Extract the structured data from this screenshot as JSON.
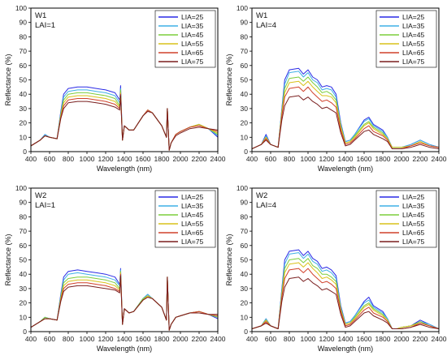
{
  "chart_data": [
    {
      "type": "line",
      "title": "W1",
      "subtitle": "LAI=1",
      "xlabel": "Wavelength (nm)",
      "ylabel": "Reflectance (%)",
      "xlim": [
        400,
        2400
      ],
      "ylim": [
        0,
        100
      ],
      "xticks": [
        400,
        600,
        800,
        1000,
        1200,
        1400,
        1600,
        1800,
        2000,
        2200,
        2400
      ],
      "yticks": [
        0,
        10,
        20,
        30,
        40,
        50,
        60,
        70,
        80,
        90,
        100
      ],
      "legend": "top-right",
      "grid": false,
      "x": [
        400,
        500,
        550,
        600,
        680,
        720,
        750,
        800,
        900,
        1000,
        1100,
        1200,
        1300,
        1350,
        1360,
        1380,
        1400,
        1450,
        1500,
        1600,
        1650,
        1700,
        1800,
        1850,
        1860,
        1880,
        1900,
        1950,
        2000,
        2100,
        2200,
        2300,
        2400
      ],
      "series": [
        {
          "name": "LIA=25",
          "color": "#2a2ae6",
          "values": [
            4,
            8,
            12,
            10,
            9,
            28,
            40,
            44,
            45,
            45,
            44,
            43,
            41,
            36,
            46,
            8,
            18,
            15,
            15,
            25,
            29,
            27,
            18,
            10,
            30,
            1,
            6,
            12,
            14,
            17,
            19,
            16,
            10
          ]
        },
        {
          "name": "LIA=35",
          "color": "#3fb0e6",
          "values": [
            4,
            8,
            12,
            10,
            9,
            27,
            38,
            42,
            43,
            43,
            42,
            41,
            39,
            34,
            44,
            8,
            18,
            15,
            15,
            25,
            29,
            27,
            18,
            10,
            30,
            1,
            6,
            12,
            14,
            17,
            19,
            16,
            11
          ]
        },
        {
          "name": "LIA=45",
          "color": "#7ccd3c",
          "values": [
            4,
            8,
            11,
            10,
            9,
            26,
            36,
            40,
            41,
            41,
            40,
            39,
            37,
            32,
            43,
            8,
            18,
            15,
            15,
            25,
            29,
            27,
            18,
            10,
            30,
            1,
            6,
            12,
            14,
            17,
            19,
            16,
            12
          ]
        },
        {
          "name": "LIA=55",
          "color": "#d9c21a",
          "values": [
            4,
            8,
            11,
            10,
            9,
            25,
            34,
            38,
            39,
            39,
            38,
            37,
            35,
            31,
            41,
            8,
            18,
            15,
            15,
            25,
            29,
            27,
            18,
            10,
            30,
            1,
            6,
            12,
            14,
            17,
            19,
            16,
            13
          ]
        },
        {
          "name": "LIA=65",
          "color": "#d0402a",
          "values": [
            4,
            8,
            11,
            10,
            9,
            24,
            32,
            36,
            37,
            37,
            36,
            35,
            33,
            30,
            40,
            8,
            18,
            15,
            15,
            25,
            29,
            27,
            18,
            10,
            30,
            1,
            6,
            12,
            14,
            17,
            18,
            16,
            14
          ]
        },
        {
          "name": "LIA=75",
          "color": "#7a1f1f",
          "values": [
            4,
            8,
            11,
            10,
            9,
            23,
            30,
            34,
            35,
            35,
            34,
            33,
            31,
            29,
            39,
            8,
            18,
            15,
            15,
            25,
            28,
            27,
            18,
            10,
            30,
            1,
            6,
            11,
            13,
            16,
            17,
            16,
            15
          ]
        }
      ]
    },
    {
      "type": "line",
      "title": "W1",
      "subtitle": "LAI=4",
      "xlabel": "Wavelength (nm)",
      "ylabel": "Reflectance (%)",
      "xlim": [
        400,
        2400
      ],
      "ylim": [
        0,
        100
      ],
      "xticks": [
        400,
        600,
        800,
        1000,
        1200,
        1400,
        1600,
        1800,
        2000,
        2200,
        2400
      ],
      "yticks": [
        0,
        10,
        20,
        30,
        40,
        50,
        60,
        70,
        80,
        90,
        100
      ],
      "legend": "top-right",
      "grid": false,
      "x": [
        400,
        500,
        550,
        600,
        680,
        720,
        750,
        800,
        900,
        950,
        1000,
        1050,
        1100,
        1150,
        1200,
        1250,
        1300,
        1350,
        1400,
        1450,
        1500,
        1600,
        1650,
        1700,
        1800,
        1850,
        1900,
        1950,
        2000,
        2100,
        2200,
        2300,
        2400
      ],
      "series": [
        {
          "name": "LIA=25",
          "color": "#2a2ae6",
          "values": [
            2,
            5,
            12,
            5,
            3,
            30,
            50,
            57,
            58,
            54,
            57,
            52,
            50,
            45,
            46,
            45,
            40,
            20,
            7,
            8,
            12,
            22,
            24,
            19,
            15,
            10,
            3,
            3,
            3,
            5,
            8,
            5,
            3
          ]
        },
        {
          "name": "LIA=35",
          "color": "#3fb0e6",
          "values": [
            2,
            5,
            11,
            5,
            3,
            29,
            47,
            55,
            56,
            52,
            55,
            50,
            48,
            43,
            44,
            43,
            38,
            19,
            7,
            8,
            12,
            21,
            23,
            18,
            14,
            10,
            3,
            3,
            3,
            5,
            8,
            5,
            3
          ]
        },
        {
          "name": "LIA=45",
          "color": "#7ccd3c",
          "values": [
            2,
            5,
            10,
            5,
            3,
            28,
            44,
            51,
            52,
            49,
            52,
            48,
            45,
            41,
            42,
            40,
            36,
            18,
            6,
            7,
            11,
            19,
            21,
            17,
            13,
            9,
            3,
            3,
            3,
            4,
            7,
            4,
            3
          ]
        },
        {
          "name": "LIA=55",
          "color": "#d9c21a",
          "values": [
            2,
            5,
            10,
            5,
            3,
            27,
            41,
            48,
            49,
            46,
            49,
            45,
            42,
            39,
            39,
            38,
            34,
            17,
            6,
            7,
            10,
            18,
            20,
            16,
            12,
            9,
            3,
            3,
            3,
            4,
            7,
            4,
            3
          ]
        },
        {
          "name": "LIA=65",
          "color": "#d0402a",
          "values": [
            2,
            5,
            9,
            5,
            3,
            25,
            38,
            44,
            45,
            42,
            45,
            41,
            38,
            35,
            36,
            34,
            31,
            15,
            5,
            6,
            9,
            16,
            18,
            14,
            11,
            8,
            2,
            2,
            2,
            4,
            6,
            4,
            3
          ]
        },
        {
          "name": "LIA=75",
          "color": "#7a1f1f",
          "values": [
            2,
            5,
            8,
            5,
            3,
            22,
            32,
            38,
            39,
            36,
            38,
            35,
            33,
            30,
            31,
            29,
            27,
            13,
            4,
            5,
            8,
            14,
            15,
            12,
            9,
            7,
            2,
            2,
            2,
            3,
            5,
            3,
            2
          ]
        }
      ]
    },
    {
      "type": "line",
      "title": "W2",
      "subtitle": "LAI=1",
      "xlabel": "Wavelength (nm)",
      "ylabel": "Reflectance (%)",
      "xlim": [
        400,
        2400
      ],
      "ylim": [
        0,
        100
      ],
      "xticks": [
        400,
        600,
        800,
        1000,
        1200,
        1400,
        1600,
        1800,
        2000,
        2200,
        2400
      ],
      "yticks": [
        0,
        10,
        20,
        30,
        40,
        50,
        60,
        70,
        80,
        90,
        100
      ],
      "legend": "top-right",
      "grid": false,
      "x": [
        400,
        500,
        550,
        600,
        680,
        720,
        750,
        800,
        900,
        1000,
        1100,
        1200,
        1300,
        1350,
        1360,
        1380,
        1400,
        1450,
        1500,
        1600,
        1650,
        1700,
        1800,
        1850,
        1860,
        1880,
        1900,
        1950,
        2000,
        2100,
        2200,
        2300,
        2400
      ],
      "series": [
        {
          "name": "LIA=25",
          "color": "#2a2ae6",
          "values": [
            3,
            7,
            10,
            9,
            8,
            26,
            38,
            42,
            43,
            42,
            41,
            40,
            38,
            33,
            44,
            5,
            16,
            13,
            14,
            23,
            26,
            23,
            17,
            8,
            38,
            1,
            5,
            10,
            11,
            13,
            14,
            12,
            9
          ]
        },
        {
          "name": "LIA=35",
          "color": "#3fb0e6",
          "values": [
            3,
            7,
            10,
            9,
            8,
            25,
            36,
            40,
            41,
            40,
            39,
            38,
            36,
            32,
            43,
            5,
            16,
            13,
            14,
            23,
            26,
            23,
            17,
            8,
            38,
            1,
            5,
            10,
            11,
            13,
            14,
            12,
            10
          ]
        },
        {
          "name": "LIA=45",
          "color": "#7ccd3c",
          "values": [
            3,
            7,
            10,
            9,
            8,
            24,
            34,
            37,
            38,
            38,
            37,
            36,
            34,
            30,
            42,
            5,
            16,
            13,
            14,
            23,
            25,
            23,
            17,
            8,
            38,
            1,
            5,
            10,
            11,
            13,
            14,
            12,
            10
          ]
        },
        {
          "name": "LIA=55",
          "color": "#d9c21a",
          "values": [
            3,
            7,
            9,
            9,
            8,
            23,
            32,
            35,
            36,
            36,
            35,
            34,
            32,
            29,
            41,
            5,
            16,
            13,
            14,
            22,
            25,
            23,
            17,
            8,
            38,
            1,
            5,
            10,
            11,
            13,
            14,
            12,
            11
          ]
        },
        {
          "name": "LIA=65",
          "color": "#d0402a",
          "values": [
            3,
            7,
            9,
            9,
            8,
            22,
            30,
            33,
            34,
            34,
            33,
            32,
            30,
            28,
            40,
            5,
            16,
            13,
            14,
            22,
            24,
            23,
            17,
            8,
            38,
            1,
            5,
            10,
            11,
            13,
            14,
            12,
            11
          ]
        },
        {
          "name": "LIA=75",
          "color": "#7a1f1f",
          "values": [
            3,
            7,
            9,
            9,
            8,
            21,
            28,
            31,
            32,
            32,
            31,
            30,
            29,
            27,
            39,
            5,
            16,
            13,
            14,
            22,
            24,
            23,
            17,
            8,
            38,
            1,
            5,
            10,
            11,
            13,
            13,
            12,
            12
          ]
        }
      ]
    },
    {
      "type": "line",
      "title": "W2",
      "subtitle": "LAI=4",
      "xlabel": "Wavelength (nm)",
      "ylabel": "Reflectance (%)",
      "xlim": [
        400,
        2400
      ],
      "ylim": [
        0,
        100
      ],
      "xticks": [
        400,
        600,
        800,
        1000,
        1200,
        1400,
        1600,
        1800,
        2000,
        2200,
        2400
      ],
      "yticks": [
        0,
        10,
        20,
        30,
        40,
        50,
        60,
        70,
        80,
        90,
        100
      ],
      "legend": "top-right",
      "grid": false,
      "x": [
        400,
        500,
        550,
        600,
        680,
        720,
        750,
        800,
        900,
        950,
        1000,
        1050,
        1100,
        1150,
        1200,
        1250,
        1300,
        1350,
        1400,
        1450,
        1500,
        1600,
        1650,
        1700,
        1800,
        1850,
        1900,
        1950,
        2000,
        2100,
        2200,
        2300,
        2400
      ],
      "series": [
        {
          "name": "LIA=25",
          "color": "#2a2ae6",
          "values": [
            2,
            4,
            9,
            4,
            2,
            30,
            50,
            56,
            57,
            53,
            56,
            51,
            49,
            44,
            45,
            43,
            39,
            18,
            6,
            7,
            11,
            21,
            24,
            18,
            14,
            9,
            2,
            2,
            3,
            4,
            8,
            5,
            2
          ]
        },
        {
          "name": "LIA=35",
          "color": "#3fb0e6",
          "values": [
            2,
            4,
            9,
            4,
            2,
            29,
            47,
            54,
            55,
            51,
            54,
            49,
            47,
            42,
            43,
            41,
            37,
            17,
            6,
            7,
            11,
            20,
            22,
            17,
            13,
            9,
            2,
            2,
            3,
            4,
            7,
            5,
            2
          ]
        },
        {
          "name": "LIA=45",
          "color": "#7ccd3c",
          "values": [
            2,
            4,
            8,
            4,
            2,
            27,
            44,
            50,
            51,
            48,
            51,
            46,
            44,
            40,
            40,
            38,
            35,
            16,
            5,
            6,
            10,
            18,
            20,
            16,
            12,
            8,
            2,
            2,
            3,
            4,
            7,
            4,
            2
          ]
        },
        {
          "name": "LIA=55",
          "color": "#d9c21a",
          "values": [
            2,
            4,
            8,
            4,
            2,
            26,
            41,
            47,
            48,
            45,
            48,
            44,
            41,
            37,
            38,
            36,
            33,
            15,
            5,
            6,
            9,
            17,
            19,
            15,
            11,
            8,
            2,
            2,
            3,
            4,
            6,
            4,
            2
          ]
        },
        {
          "name": "LIA=65",
          "color": "#d0402a",
          "values": [
            2,
            4,
            7,
            4,
            2,
            24,
            37,
            43,
            44,
            41,
            44,
            40,
            37,
            34,
            35,
            33,
            30,
            14,
            4,
            5,
            8,
            15,
            17,
            13,
            10,
            7,
            2,
            2,
            2,
            3,
            6,
            4,
            2
          ]
        },
        {
          "name": "LIA=75",
          "color": "#7a1f1f",
          "values": [
            2,
            4,
            6,
            4,
            2,
            21,
            31,
            37,
            38,
            35,
            37,
            34,
            32,
            29,
            30,
            28,
            26,
            12,
            3,
            4,
            7,
            13,
            14,
            11,
            8,
            6,
            2,
            2,
            2,
            3,
            5,
            3,
            2
          ]
        }
      ]
    }
  ]
}
